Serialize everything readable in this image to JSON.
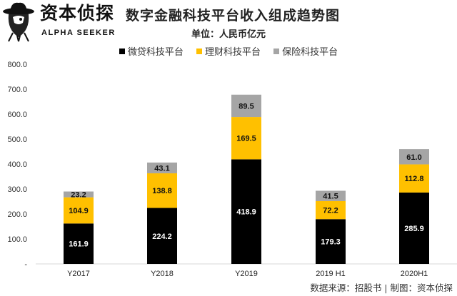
{
  "logo": {
    "cn": "资本侦探",
    "en": "ALPHA SEEKER"
  },
  "title": "数字金融科技平台收入组成趋势图",
  "subtitle": "单位：人民币亿元",
  "footer": "数据来源：招股书 | 制图：资本侦探",
  "chart_data": {
    "type": "bar",
    "stacked": true,
    "categories": [
      "Y2017",
      "Y2018",
      "Y2019",
      "2019 H1",
      "2020H1"
    ],
    "series": [
      {
        "name": "微贷科技平台",
        "color": "#000000",
        "values": [
          161.9,
          224.2,
          418.9,
          179.3,
          285.9
        ]
      },
      {
        "name": "理财科技平台",
        "color": "#FFC000",
        "values": [
          104.9,
          138.8,
          169.5,
          72.2,
          112.8
        ]
      },
      {
        "name": "保险科技平台",
        "color": "#A5A5A5",
        "values": [
          23.2,
          43.1,
          89.5,
          41.5,
          61.0
        ]
      }
    ],
    "ylim": [
      0,
      800
    ],
    "yticks": [
      "-",
      "100.0",
      "200.0",
      "300.0",
      "400.0",
      "500.0",
      "600.0",
      "700.0",
      "800.0"
    ],
    "legend": "top",
    "grid": false
  }
}
